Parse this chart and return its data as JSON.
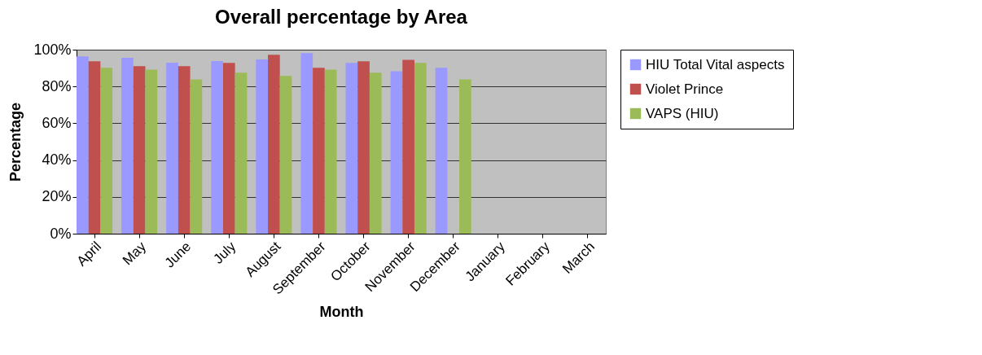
{
  "chart_data": {
    "type": "bar",
    "title": "Overall percentage by Area",
    "xlabel": "Month",
    "ylabel": "Percentage",
    "categories": [
      "April",
      "May",
      "June",
      "July",
      "August",
      "September",
      "October",
      "November",
      "December",
      "January",
      "February",
      "March"
    ],
    "series": [
      {
        "name": "HIU Total Vital aspects",
        "color": "#9999ff",
        "values": [
          96.3,
          95.6,
          92.9,
          93.8,
          94.7,
          98.1,
          92.8,
          88.3,
          90.1,
          null,
          null,
          null
        ]
      },
      {
        "name": "Violet Prince",
        "color": "#c0504d",
        "values": [
          93.7,
          91,
          91,
          92.8,
          97.2,
          90.1,
          93.7,
          94.5,
          null,
          null,
          null,
          null
        ]
      },
      {
        "name": "VAPS (HIU)",
        "color": "#9bbb59",
        "values": [
          90.1,
          89.2,
          83.9,
          87.5,
          85.7,
          89.2,
          87.5,
          92.8,
          83.9,
          null,
          null,
          null
        ]
      }
    ],
    "ylim": [
      0,
      100
    ],
    "yticks": [
      {
        "value": 0,
        "label": "0%"
      },
      {
        "value": 20,
        "label": "20%"
      },
      {
        "value": 40,
        "label": "40%"
      },
      {
        "value": 60,
        "label": "60%"
      },
      {
        "value": 80,
        "label": "80%"
      },
      {
        "value": 100,
        "label": "100%"
      }
    ],
    "grid": "y",
    "legend": "right"
  }
}
